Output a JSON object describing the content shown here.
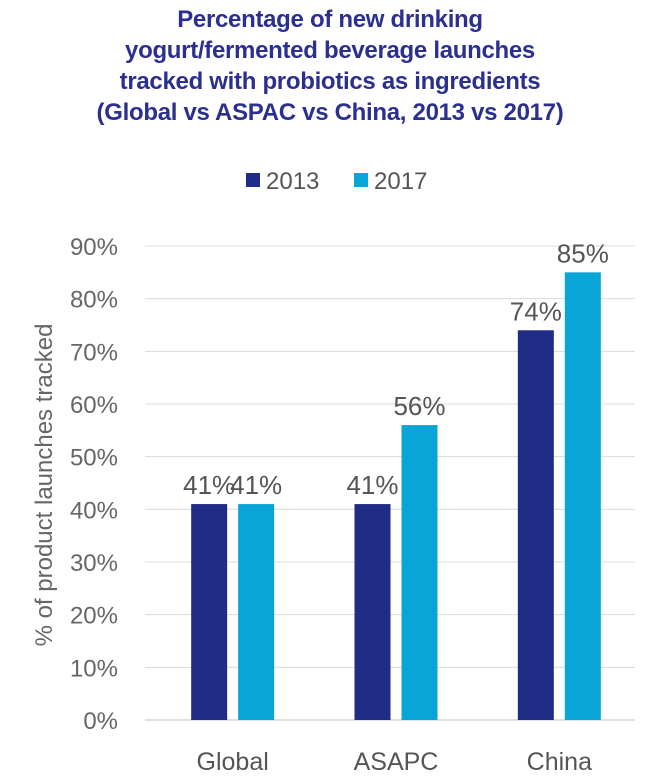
{
  "chart_data": {
    "type": "bar",
    "title_lines": [
      "Percentage of new drinking",
      "yogurt/fermented beverage launches",
      "tracked with probiotics as ingredients",
      "(Global vs ASPAC vs China, 2013 vs 2017)"
    ],
    "categories": [
      "Global",
      "ASAPC",
      "China"
    ],
    "series": [
      {
        "name": "2013",
        "color": "#1f2d86",
        "values": [
          41,
          41,
          74
        ],
        "labels": [
          "41%",
          "41%",
          "74%"
        ]
      },
      {
        "name": "2017",
        "color": "#08a5d6",
        "values": [
          41,
          56,
          85
        ],
        "labels": [
          "41%",
          "56%",
          "85%"
        ]
      }
    ],
    "ylabel": "% of product launches tracked",
    "ylim": [
      0,
      90
    ],
    "yticks": [
      0,
      10,
      20,
      30,
      40,
      50,
      60,
      70,
      80,
      90
    ],
    "ytick_labels": [
      "0%",
      "10%",
      "20%",
      "30%",
      "40%",
      "50%",
      "60%",
      "70%",
      "80%",
      "90%"
    ],
    "legend_position": "top-center",
    "grid": true
  }
}
